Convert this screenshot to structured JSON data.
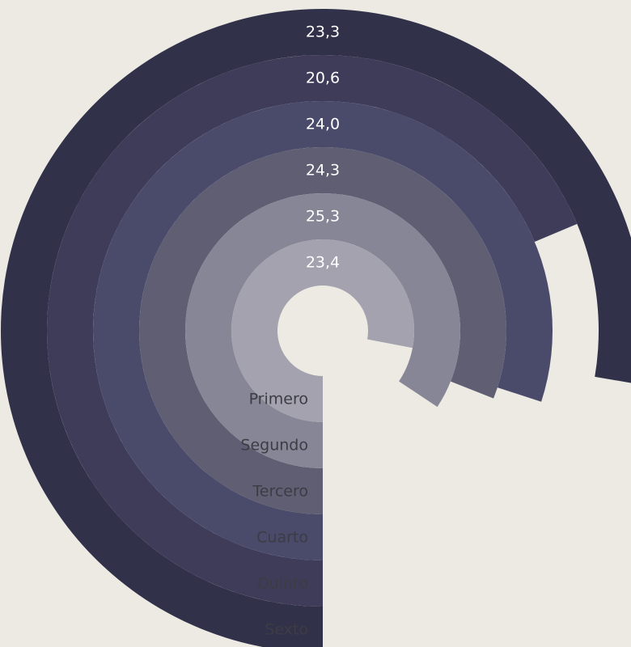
{
  "chart_data": {
    "type": "radial-bar",
    "title": "",
    "subtitle": "",
    "categories": [
      "Primero",
      "Segundo",
      "Tercero",
      "Cuarto",
      "Quinto",
      "Sexto"
    ],
    "values": [
      23.4,
      25.3,
      24.3,
      24.0,
      20.6,
      23.3
    ],
    "value_labels": [
      "23,4",
      "25,3",
      "24,3",
      "24,0",
      "20,6",
      "23,3"
    ],
    "value_max": 30,
    "direction": "clockwise",
    "start_angle": "bottom",
    "legend": "none",
    "grid": false,
    "colors": [
      "#a3a2ae",
      "#878696",
      "#5f5e73",
      "#4a4a6b",
      "#3f3c5a",
      "#31324a"
    ]
  }
}
